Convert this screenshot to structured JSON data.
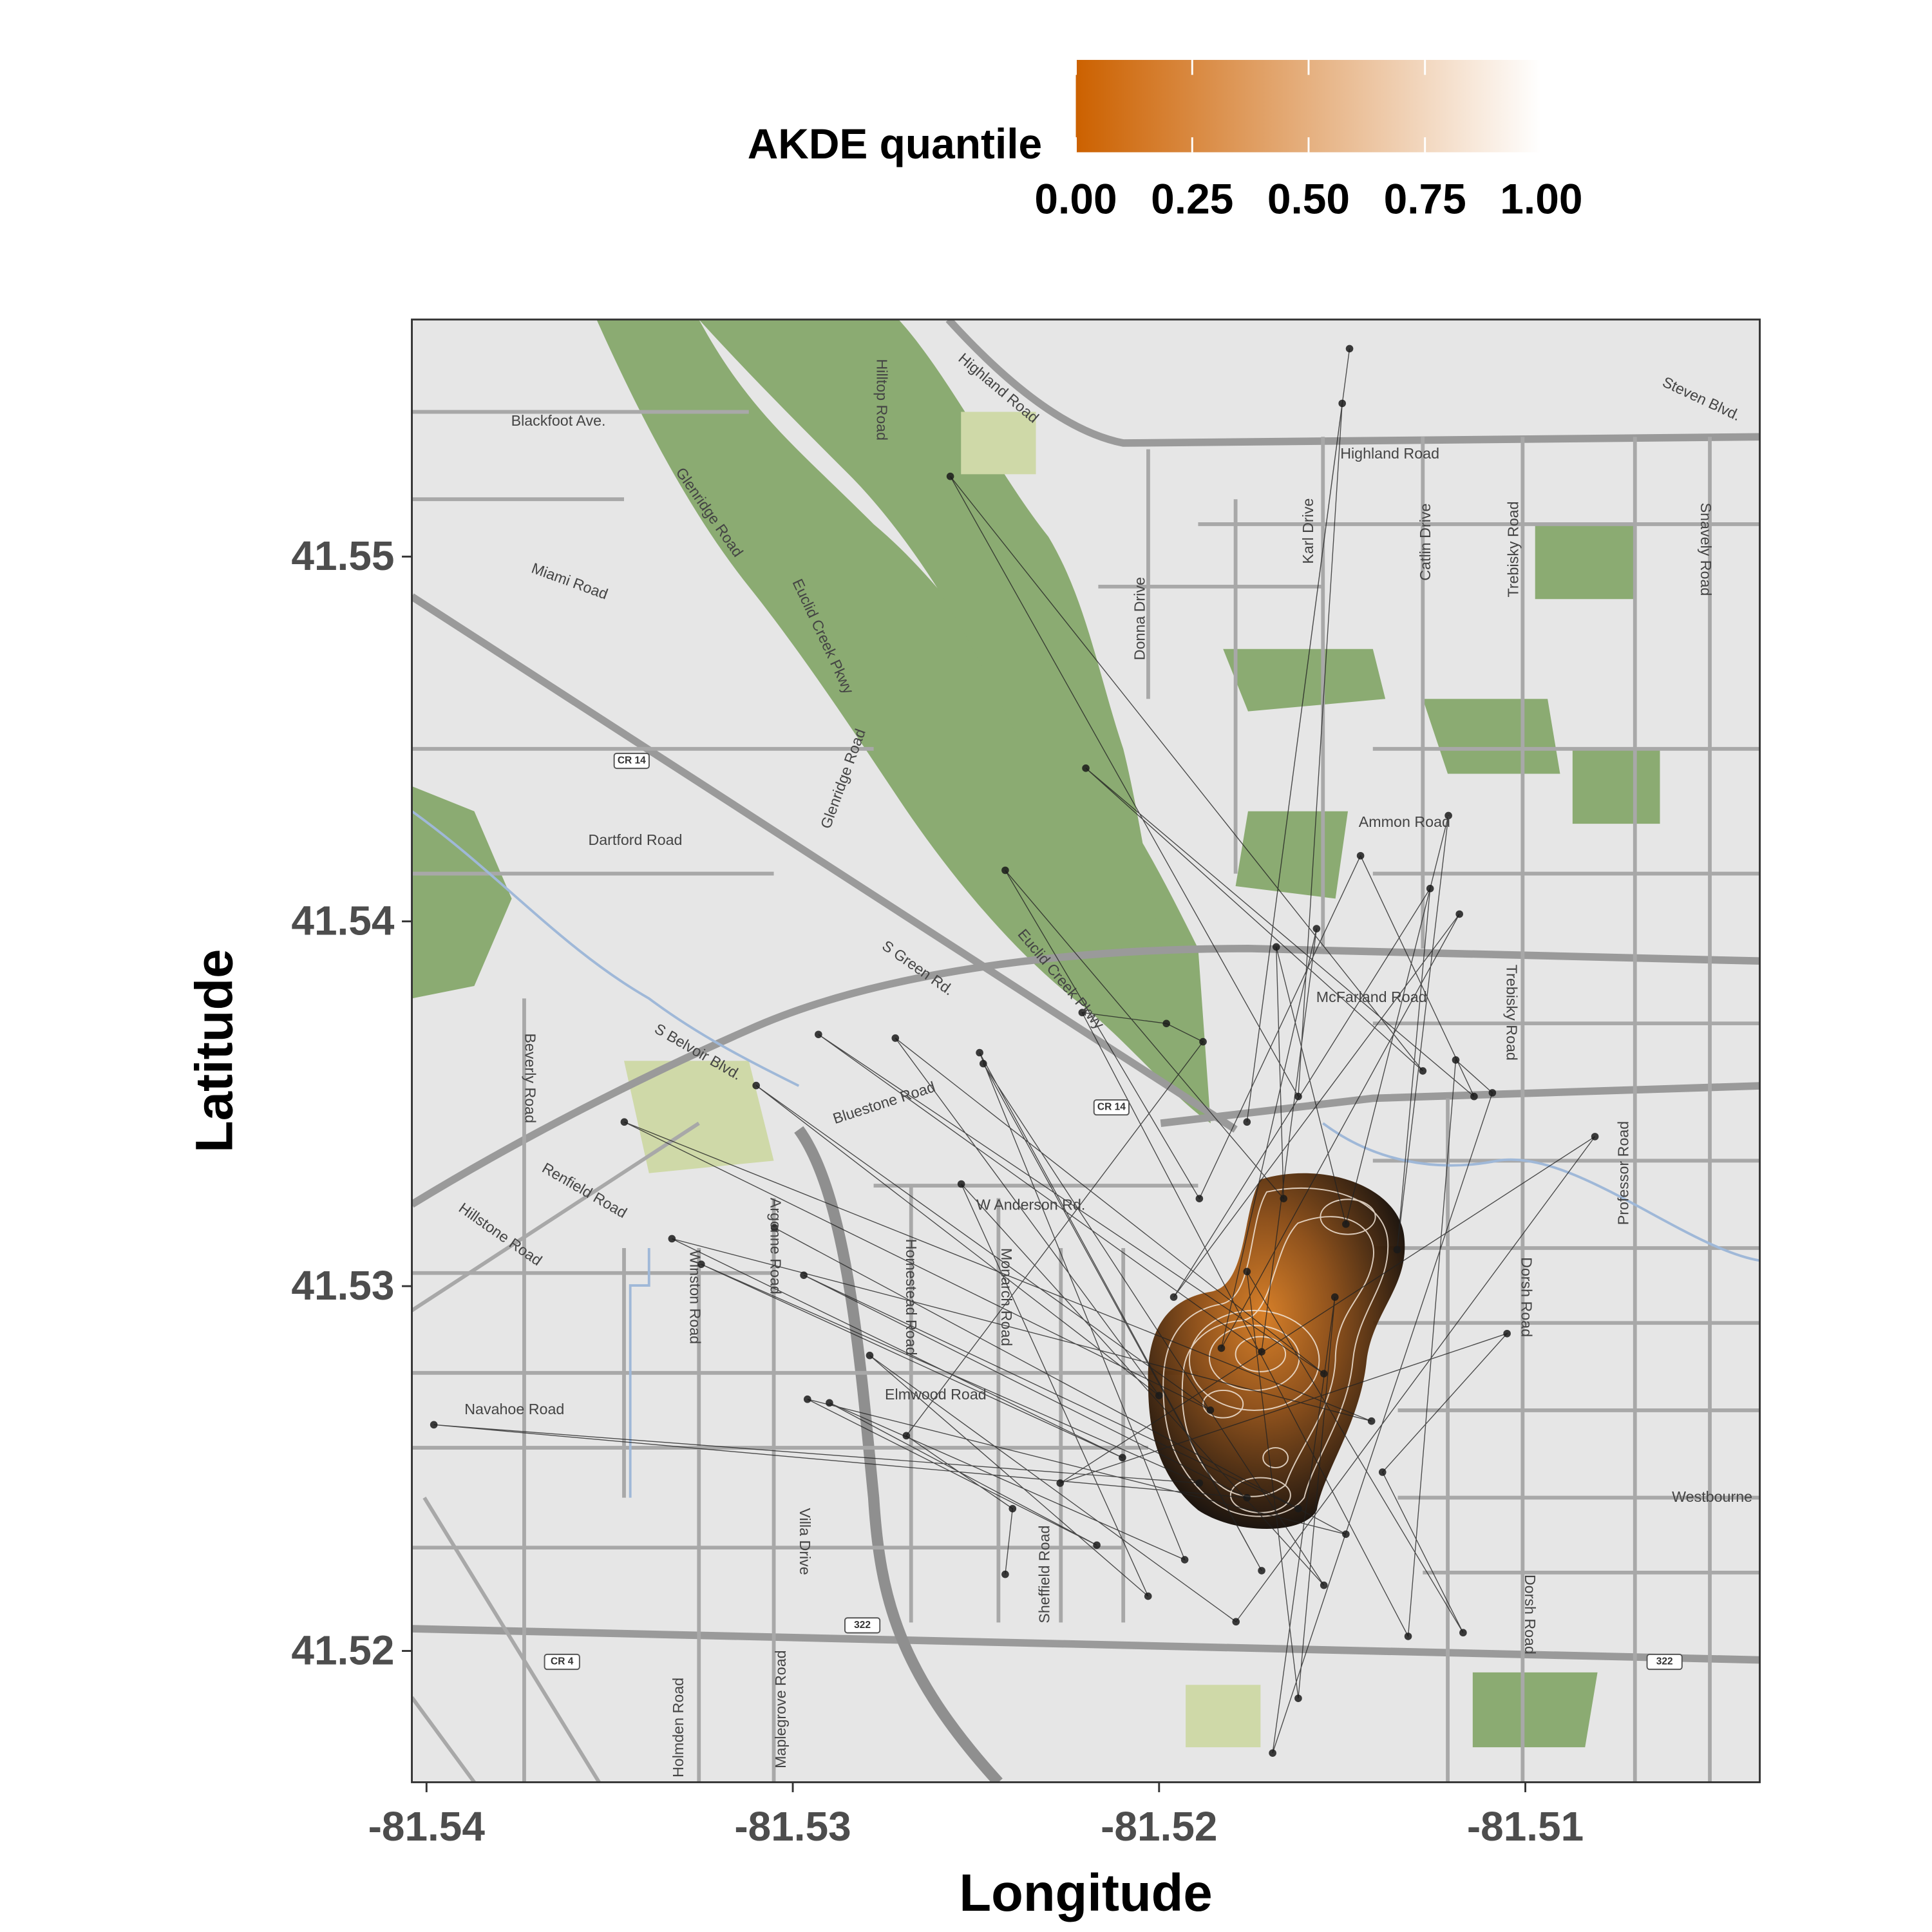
{
  "chart_data": {
    "type": "scatter",
    "x_label": "Longitude",
    "y_label": "Latitude",
    "xlim": [
      -81.5404,
      -81.5036
    ],
    "ylim": [
      41.5164,
      41.5565
    ],
    "xticks": [
      -81.54,
      -81.53,
      -81.52,
      -81.51
    ],
    "yticks": [
      41.52,
      41.53,
      41.54,
      41.55
    ],
    "color": "#1a1a1a",
    "x": [
      -81.5148,
      -81.5176,
      -81.515,
      -81.5162,
      -81.5257,
      -81.5128,
      -81.522,
      -81.5114,
      -81.5145,
      -81.5189,
      -81.5242,
      -81.5166,
      -81.5168,
      -81.5149,
      -81.5121,
      -81.5135,
      -81.5126,
      -81.5196,
      -81.5118,
      -81.5183,
      -81.5157,
      -81.5172,
      -81.5293,
      -81.5155,
      -81.5272,
      -81.52,
      -81.531,
      -81.5186,
      -81.5346,
      -81.5142,
      -81.5333,
      -81.521,
      -81.5325,
      -81.5189,
      -81.5398,
      -81.5176,
      -81.5297,
      -81.5162,
      -81.5305,
      -81.5149,
      -81.5296,
      -81.5217,
      -81.529,
      -81.5193,
      -81.5249,
      -81.5172,
      -81.5248,
      -81.5155,
      -81.5254,
      -81.5203,
      -81.5279,
      -81.5179,
      -81.5081,
      -81.5227,
      -81.5105,
      -81.5139,
      -81.5117,
      -81.5176,
      -81.5162,
      -81.5152,
      -81.5169,
      -81.5109,
      -81.5119,
      -81.5132,
      -81.5221,
      -81.5198,
      -81.5188,
      -81.5269,
      -81.524,
      -81.5242
    ],
    "values": [
      41.5557,
      41.5345,
      41.5542,
      41.5352,
      41.5522,
      41.5359,
      41.5442,
      41.5352,
      41.5418,
      41.5324,
      41.5414,
      41.5324,
      41.5393,
      41.5317,
      41.5429,
      41.531,
      41.5409,
      41.5297,
      41.5402,
      41.5283,
      41.5398,
      41.5282,
      41.5369,
      41.5276,
      41.5368,
      41.527,
      41.5355,
      41.5266,
      41.5345,
      41.5263,
      41.5313,
      41.5253,
      41.5306,
      41.5246,
      41.5262,
      41.5242,
      41.5303,
      41.5239,
      41.5316,
      41.5232,
      41.5269,
      41.5229,
      41.5268,
      41.5225,
      41.5364,
      41.5222,
      41.5361,
      41.5218,
      41.5328,
      41.5215,
      41.5281,
      41.5208,
      41.5341,
      41.5246,
      41.5287,
      41.5249,
      41.5205,
      41.5304,
      41.5187,
      41.5297,
      41.5172,
      41.5353,
      41.5362,
      41.5204,
      41.5375,
      41.5372,
      41.5367,
      41.5259,
      41.5239,
      41.5221
    ],
    "colorbar": {
      "title": "AKDE quantile",
      "lim": [
        0,
        1
      ],
      "colors": [
        "#cc6100",
        "#ffffff"
      ],
      "ticks": [
        {
          "value": 0,
          "label": "0.00"
        },
        {
          "value": 0.25,
          "label": "0.25"
        },
        {
          "value": 0.5,
          "label": "0.50"
        },
        {
          "value": 0.75,
          "label": "0.75"
        },
        {
          "value": 1,
          "label": "1.00"
        }
      ]
    }
  },
  "map_labels": [
    {
      "text": "Blackfoot Ave.",
      "lon": -81.5364,
      "lat": 41.5537
    },
    {
      "text": "Highland Road",
      "lon": -81.5137,
      "lat": 41.5528
    },
    {
      "text": "Highland Road",
      "lon": -81.5244,
      "lat": 41.5546
    },
    {
      "text": "Miami Road",
      "lon": -81.5361,
      "lat": 41.5493
    },
    {
      "text": "Glenridge Road",
      "lon": -81.5323,
      "lat": 41.5512
    },
    {
      "text": "Euclid Creek Pkwy",
      "lon": -81.5292,
      "lat": 41.5478
    },
    {
      "text": "Hilltop Road",
      "lon": -81.5276,
      "lat": 41.5543
    },
    {
      "text": "Donna Drive",
      "lon": -81.5205,
      "lat": 41.5483
    },
    {
      "text": "Karl Drive",
      "lon": -81.5159,
      "lat": 41.5507
    },
    {
      "text": "Catlin Drive",
      "lon": -81.5127,
      "lat": 41.5504
    },
    {
      "text": "Trebisky Road",
      "lon": -81.5103,
      "lat": 41.5502
    },
    {
      "text": "Snavely Road",
      "lon": -81.5051,
      "lat": 41.5502
    },
    {
      "text": "Steven Blvd.",
      "lon": -81.5052,
      "lat": 41.5543
    },
    {
      "text": "Dartford Road",
      "lon": -81.5343,
      "lat": 41.5422
    },
    {
      "text": "Glenridge Road",
      "lon": -81.5286,
      "lat": 41.5439
    },
    {
      "text": "Ammon Road",
      "lon": -81.5133,
      "lat": 41.5427
    },
    {
      "text": "S Green Rd.",
      "lon": -81.5266,
      "lat": 41.5387
    },
    {
      "text": "Euclid Creek Pkwy",
      "lon": -81.5227,
      "lat": 41.5384
    },
    {
      "text": "McFarland Road",
      "lon": -81.5142,
      "lat": 41.5379
    },
    {
      "text": "S Belvoir Blvd.",
      "lon": -81.5326,
      "lat": 41.5364
    },
    {
      "text": "Bluestone Road",
      "lon": -81.5275,
      "lat": 41.535
    },
    {
      "text": "Beverly Road",
      "lon": -81.5372,
      "lat": 41.5357
    },
    {
      "text": "Renfield Road",
      "lon": -81.5357,
      "lat": 41.5326
    },
    {
      "text": "Hillstone Road",
      "lon": -81.538,
      "lat": 41.5314
    },
    {
      "text": "W Anderson Rd.",
      "lon": -81.5235,
      "lat": 41.5322
    },
    {
      "text": "Argonne Road",
      "lon": -81.5305,
      "lat": 41.5311
    },
    {
      "text": "Winston Road",
      "lon": -81.5327,
      "lat": 41.5297
    },
    {
      "text": "Homestead Road",
      "lon": -81.5268,
      "lat": 41.5297
    },
    {
      "text": "Monarch Road",
      "lon": -81.5242,
      "lat": 41.5297
    },
    {
      "text": "Elmwood Road",
      "lon": -81.5261,
      "lat": 41.527
    },
    {
      "text": "Navahoe Road",
      "lon": -81.5376,
      "lat": 41.5266
    },
    {
      "text": "Dorsh Road",
      "lon": -81.51,
      "lat": 41.5297
    },
    {
      "text": "Professor Road",
      "lon": -81.5073,
      "lat": 41.5331
    },
    {
      "text": "Trebisky Road",
      "lon": -81.5104,
      "lat": 41.5375
    },
    {
      "text": "Villa Drive",
      "lon": -81.5297,
      "lat": 41.523
    },
    {
      "text": "Sheffield Road",
      "lon": -81.5231,
      "lat": 41.5221
    },
    {
      "text": "Holmden Road",
      "lon": -81.5331,
      "lat": 41.5179
    },
    {
      "text": "Maplegrove Road",
      "lon": -81.5303,
      "lat": 41.5184
    },
    {
      "text": "Dorsh Road",
      "lon": -81.5099,
      "lat": 41.521
    },
    {
      "text": "Westbourne",
      "lon": -81.5049,
      "lat": 41.5242
    },
    {
      "text": "CR 14",
      "lon": -81.5344,
      "lat": 41.5444
    },
    {
      "text": "CR 14",
      "lon": -81.5213,
      "lat": 41.5349
    },
    {
      "text": "CR 4",
      "lon": -81.5363,
      "lat": 41.5197
    },
    {
      "text": "322",
      "lon": -81.5281,
      "lat": 41.5207
    },
    {
      "text": "322",
      "lon": -81.5062,
      "lat": 41.5197
    }
  ]
}
